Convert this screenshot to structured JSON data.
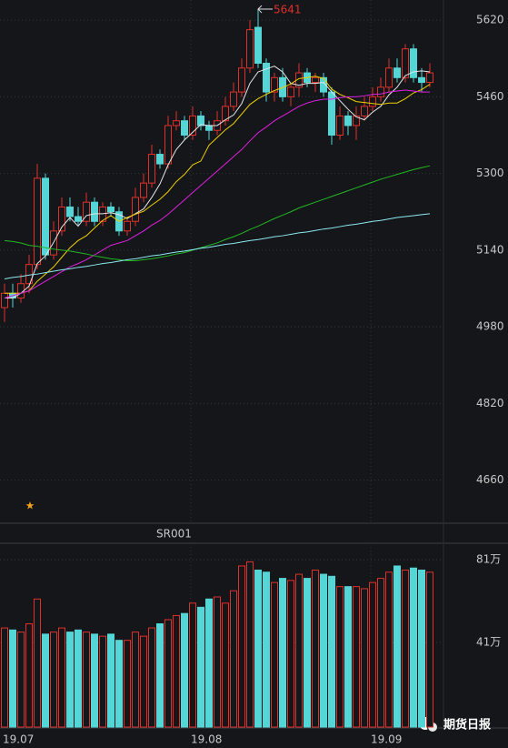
{
  "chart_data": [
    {
      "type": "candlestick",
      "categories": [
        "19.07",
        null,
        null,
        null,
        null,
        null,
        null,
        null,
        null,
        null,
        null,
        null,
        null,
        null,
        null,
        null,
        null,
        null,
        null,
        null,
        null,
        null,
        null,
        "19.08",
        null,
        null,
        null,
        null,
        null,
        null,
        null,
        null,
        null,
        null,
        null,
        null,
        null,
        null,
        null,
        null,
        null,
        null,
        null,
        null,
        null,
        "19.09",
        null,
        null,
        null,
        null,
        null,
        null,
        null
      ],
      "open": [
        5020,
        5050,
        5040,
        5070,
        5110,
        5290,
        5130,
        5180,
        5230,
        5210,
        5200,
        5240,
        5200,
        5230,
        5220,
        5180,
        5200,
        5250,
        5280,
        5340,
        5320,
        5400,
        5410,
        5380,
        5420,
        5400,
        5390,
        5410,
        5440,
        5470,
        5520,
        5605,
        5530,
        5470,
        5500,
        5460,
        5480,
        5510,
        5490,
        5500,
        5470,
        5380,
        5420,
        5400,
        5420,
        5440,
        5460,
        5480,
        5520,
        5500,
        5560,
        5500,
        5490
      ],
      "high": [
        5070,
        5070,
        5090,
        5130,
        5320,
        5300,
        5200,
        5250,
        5250,
        5230,
        5260,
        5250,
        5240,
        5240,
        5230,
        5210,
        5270,
        5300,
        5360,
        5350,
        5420,
        5430,
        5420,
        5440,
        5430,
        5410,
        5430,
        5460,
        5490,
        5540,
        5620,
        5641,
        5540,
        5510,
        5520,
        5490,
        5530,
        5520,
        5510,
        5510,
        5480,
        5440,
        5430,
        5440,
        5460,
        5480,
        5500,
        5540,
        5540,
        5570,
        5570,
        5520,
        5530
      ],
      "low": [
        4990,
        5020,
        5030,
        5050,
        5100,
        5120,
        5120,
        5170,
        5200,
        5190,
        5190,
        5190,
        5190,
        5210,
        5170,
        5170,
        5190,
        5240,
        5270,
        5310,
        5310,
        5390,
        5370,
        5370,
        5390,
        5370,
        5380,
        5400,
        5430,
        5460,
        5510,
        5520,
        5450,
        5450,
        5450,
        5440,
        5460,
        5480,
        5470,
        5460,
        5360,
        5370,
        5380,
        5370,
        5410,
        5430,
        5450,
        5470,
        5490,
        5490,
        5490,
        5470,
        5480
      ],
      "close": [
        5050,
        5040,
        5070,
        5110,
        5290,
        5130,
        5180,
        5230,
        5210,
        5200,
        5240,
        5200,
        5230,
        5220,
        5180,
        5200,
        5250,
        5280,
        5340,
        5320,
        5400,
        5410,
        5380,
        5420,
        5400,
        5390,
        5410,
        5440,
        5470,
        5520,
        5600,
        5530,
        5470,
        5500,
        5460,
        5480,
        5510,
        5490,
        5500,
        5470,
        5380,
        5420,
        5400,
        5420,
        5440,
        5460,
        5480,
        5520,
        5500,
        5560,
        5500,
        5490,
        5510
      ],
      "lines": [
        {
          "color": "#e6e6e6",
          "values": [
            5040,
            5040,
            5050,
            5065,
            5112,
            5128,
            5156,
            5188,
            5208,
            5190,
            5212,
            5216,
            5216,
            5218,
            5214,
            5206,
            5216,
            5226,
            5250,
            5278,
            5318,
            5350,
            5370,
            5386,
            5402,
            5400,
            5400,
            5412,
            5422,
            5446,
            5488,
            5512,
            5518,
            5524,
            5512,
            5488,
            5484,
            5488,
            5488,
            5490,
            5470,
            5452,
            5434,
            5418,
            5412,
            5428,
            5440,
            5464,
            5480,
            5504,
            5512,
            5514,
            5512
          ]
        },
        {
          "color": "#f0d000",
          "values": [
            5050,
            5050,
            5050,
            5055,
            5075,
            5090,
            5105,
            5125,
            5145,
            5160,
            5170,
            5186,
            5202,
            5212,
            5200,
            5208,
            5215,
            5221,
            5234,
            5246,
            5262,
            5283,
            5298,
            5318,
            5326,
            5359,
            5375,
            5391,
            5404,
            5424,
            5444,
            5456,
            5465,
            5473,
            5479,
            5487,
            5498,
            5500,
            5503,
            5498,
            5476,
            5465,
            5458,
            5450,
            5448,
            5446,
            5444,
            5447,
            5447,
            5456,
            5468,
            5475,
            5486
          ]
        },
        {
          "color": "#e020e0",
          "values": [
            5040,
            5045,
            5050,
            5055,
            5065,
            5075,
            5085,
            5095,
            5105,
            5112,
            5120,
            5130,
            5140,
            5150,
            5155,
            5160,
            5170,
            5180,
            5192,
            5202,
            5215,
            5230,
            5245,
            5260,
            5275,
            5290,
            5305,
            5320,
            5335,
            5350,
            5368,
            5385,
            5397,
            5410,
            5420,
            5430,
            5440,
            5447,
            5452,
            5455,
            5455,
            5458,
            5460,
            5460,
            5462,
            5465,
            5466,
            5470,
            5472,
            5474,
            5472,
            5470,
            5470
          ]
        },
        {
          "color": "#22b822",
          "values": [
            5160,
            5158,
            5155,
            5150,
            5148,
            5145,
            5142,
            5140,
            5138,
            5135,
            5132,
            5128,
            5125,
            5122,
            5120,
            5118,
            5118,
            5120,
            5122,
            5125,
            5128,
            5132,
            5135,
            5140,
            5145,
            5150,
            5155,
            5162,
            5168,
            5175,
            5183,
            5190,
            5198,
            5206,
            5213,
            5220,
            5228,
            5234,
            5240,
            5246,
            5252,
            5258,
            5264,
            5270,
            5276,
            5282,
            5288,
            5293,
            5298,
            5303,
            5308,
            5312,
            5316
          ]
        },
        {
          "color": "#8ee8f0",
          "values": [
            5080,
            5083,
            5085,
            5088,
            5090,
            5093,
            5096,
            5099,
            5101,
            5104,
            5106,
            5109,
            5112,
            5114,
            5117,
            5120,
            5122,
            5125,
            5128,
            5130,
            5133,
            5136,
            5138,
            5141,
            5144,
            5146,
            5149,
            5152,
            5154,
            5157,
            5160,
            5162,
            5165,
            5168,
            5170,
            5173,
            5176,
            5178,
            5181,
            5184,
            5186,
            5189,
            5192,
            5194,
            5197,
            5200,
            5202,
            5205,
            5208,
            5210,
            5212,
            5214,
            5216
          ]
        }
      ],
      "up_color": "#e0302a",
      "down_color": "#54d6d6",
      "ylim": [
        4570,
        5662
      ],
      "yticks": [
        5620,
        5460,
        5300,
        5140,
        4980,
        4820,
        4660
      ],
      "grid": true,
      "indicator_label": "SR001"
    },
    {
      "type": "bar",
      "values": [
        48,
        47,
        46,
        50,
        62,
        45,
        46,
        48,
        46,
        47,
        46,
        45,
        44,
        45,
        42,
        42,
        46,
        44,
        48,
        50,
        52,
        54,
        55,
        60,
        58,
        62,
        63,
        60,
        66,
        78,
        80,
        76,
        75,
        70,
        72,
        71,
        74,
        72,
        76,
        74,
        73,
        68,
        68,
        68,
        67,
        70,
        72,
        75,
        78,
        76,
        77,
        76,
        75
      ],
      "ylim": [
        0,
        89
      ],
      "yticks": [
        {
          "value": 81,
          "label": "81万"
        },
        {
          "value": 41,
          "label": "41万"
        }
      ],
      "grid": true
    }
  ],
  "watermark": "期货日报"
}
